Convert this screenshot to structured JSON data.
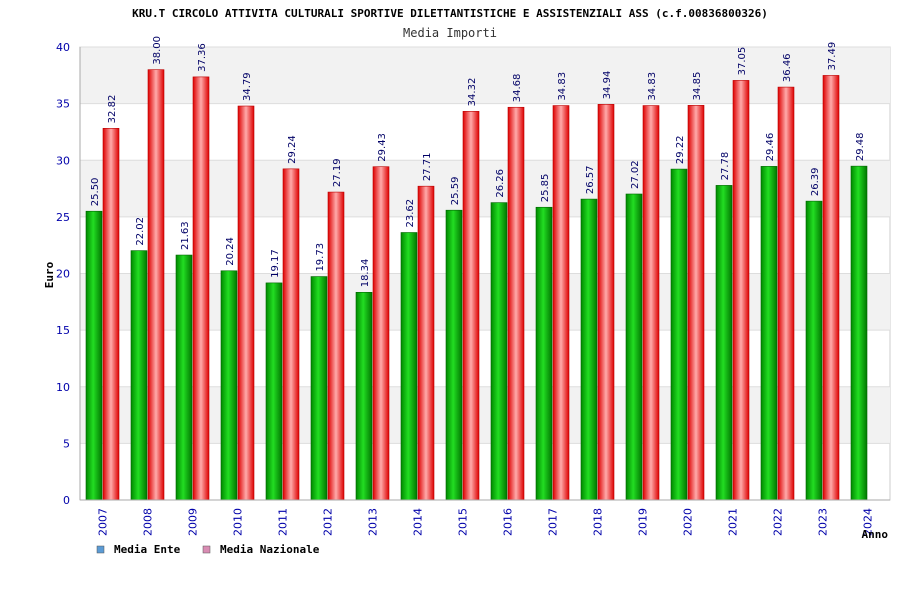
{
  "chart_data": {
    "type": "bar",
    "title": "KRU.T CIRCOLO ATTIVITA CULTURALI SPORTIVE DILETTANTISTICHE E ASSISTENZIALI ASS (c.f.00836800326)",
    "subtitle": "Media Importi",
    "xlabel": "Anno",
    "ylabel": "Euro",
    "ylim": [
      0,
      40
    ],
    "yticks": [
      0,
      5,
      10,
      15,
      20,
      25,
      30,
      35,
      40
    ],
    "grid": true,
    "legend_position": "bottom-left",
    "categories": [
      "2007",
      "2008",
      "2009",
      "2010",
      "2011",
      "2012",
      "2013",
      "2014",
      "2015",
      "2016",
      "2017",
      "2018",
      "2019",
      "2020",
      "2021",
      "2022",
      "2023",
      "2024"
    ],
    "series": [
      {
        "name": "Media Ente",
        "color": "#00bb00",
        "legend_color": "#5b9bd5",
        "values": [
          25.5,
          22.02,
          21.63,
          20.24,
          19.17,
          19.73,
          18.34,
          23.62,
          25.59,
          26.26,
          25.85,
          26.57,
          27.02,
          29.22,
          27.78,
          29.46,
          26.39,
          29.48
        ],
        "labels": [
          "25.50",
          "22.02",
          "21.63",
          "20.24",
          "19.17",
          "19.73",
          "18.34",
          "23.62",
          "25.59",
          "26.26",
          "25.85",
          "26.57",
          "27.02",
          "29.22",
          "27.78",
          "29.46",
          "26.39",
          "29.48"
        ]
      },
      {
        "name": "Media Nazionale",
        "color": "#ee2222",
        "legend_color": "#d98cb3",
        "values": [
          32.82,
          38.0,
          37.36,
          34.79,
          29.24,
          27.19,
          29.43,
          27.71,
          34.32,
          34.68,
          34.83,
          34.94,
          34.83,
          34.85,
          37.05,
          36.46,
          37.49,
          null
        ],
        "labels": [
          "32.82",
          "38.00",
          "37.36",
          "34.79",
          "29.24",
          "27.19",
          "29.43",
          "27.71",
          "34.32",
          "34.68",
          "34.83",
          "34.94",
          "34.83",
          "34.85",
          "37.05",
          "36.46",
          "37.49",
          ""
        ]
      }
    ]
  }
}
